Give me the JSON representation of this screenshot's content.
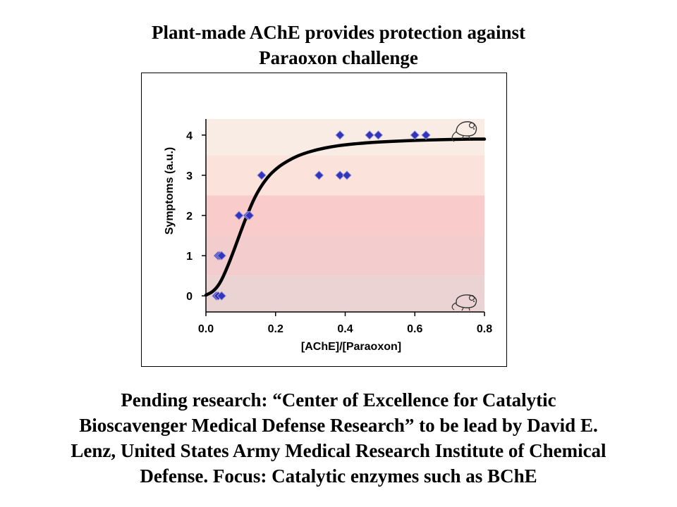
{
  "title": {
    "line1": "Plant-made AChE provides protection against",
    "line2": "Paraoxon challenge"
  },
  "chart_data": {
    "type": "scatter",
    "title": "",
    "xlabel": "[AChE]/[Paraoxon]",
    "ylabel": "Symptoms (a.u.)",
    "xlim": [
      0,
      0.8
    ],
    "ylim": [
      -0.4,
      4.4
    ],
    "x_ticks": [
      "0.0",
      "0.2",
      "0.4",
      "0.6",
      "0.8"
    ],
    "y_ticks": [
      "0",
      "1",
      "2",
      "3",
      "4"
    ],
    "grid": false,
    "series": [
      {
        "type": "scatter",
        "marker": "diamond",
        "color": "#3333bb",
        "points": [
          [
            0.03,
            0
          ],
          [
            0.035,
            0
          ],
          [
            0.045,
            0
          ],
          [
            0.035,
            1
          ],
          [
            0.04,
            1
          ],
          [
            0.045,
            1
          ],
          [
            0.095,
            2
          ],
          [
            0.12,
            2
          ],
          [
            0.125,
            2
          ],
          [
            0.16,
            3
          ],
          [
            0.325,
            3
          ],
          [
            0.385,
            3
          ],
          [
            0.405,
            3
          ],
          [
            0.385,
            4
          ],
          [
            0.47,
            4
          ],
          [
            0.495,
            4
          ],
          [
            0.6,
            4
          ],
          [
            0.632,
            4
          ]
        ]
      },
      {
        "type": "line",
        "color": "#000000",
        "curve": "fitted sigmoid",
        "x": [
          0.0,
          0.02,
          0.04,
          0.06,
          0.08,
          0.1,
          0.12,
          0.14,
          0.16,
          0.18,
          0.2,
          0.22,
          0.25,
          0.28,
          0.32,
          0.36,
          0.4,
          0.45,
          0.5,
          0.55,
          0.6,
          0.65,
          0.7,
          0.75,
          0.8
        ],
        "y": [
          0.02,
          0.1,
          0.3,
          0.68,
          1.12,
          1.6,
          2.05,
          2.45,
          2.75,
          2.98,
          3.15,
          3.28,
          3.43,
          3.54,
          3.64,
          3.71,
          3.76,
          3.8,
          3.83,
          3.85,
          3.87,
          3.88,
          3.89,
          3.9,
          3.9
        ]
      }
    ],
    "background_bands": [
      {
        "from": -0.4,
        "to": 0.5,
        "color": "#ecd3d3"
      },
      {
        "from": 0.5,
        "to": 1.5,
        "color": "#f3cdcd"
      },
      {
        "from": 1.5,
        "to": 2.5,
        "color": "#facbcb"
      },
      {
        "from": 2.5,
        "to": 3.5,
        "color": "#fbe2da"
      },
      {
        "from": 3.5,
        "to": 4.4,
        "color": "#f8ece5"
      }
    ],
    "icons": [
      "mouse-icon",
      "mouse-icon"
    ]
  },
  "footer": {
    "line1": "Pending research:  “Center of Excellence for Catalytic",
    "line2": "Bioscavenger Medical Defense Research” to be lead by David E.",
    "line3": "Lenz, United States Army Medical Research Institute of Chemical",
    "line4": "Defense.  Focus:  Catalytic enzymes such as BChE"
  }
}
